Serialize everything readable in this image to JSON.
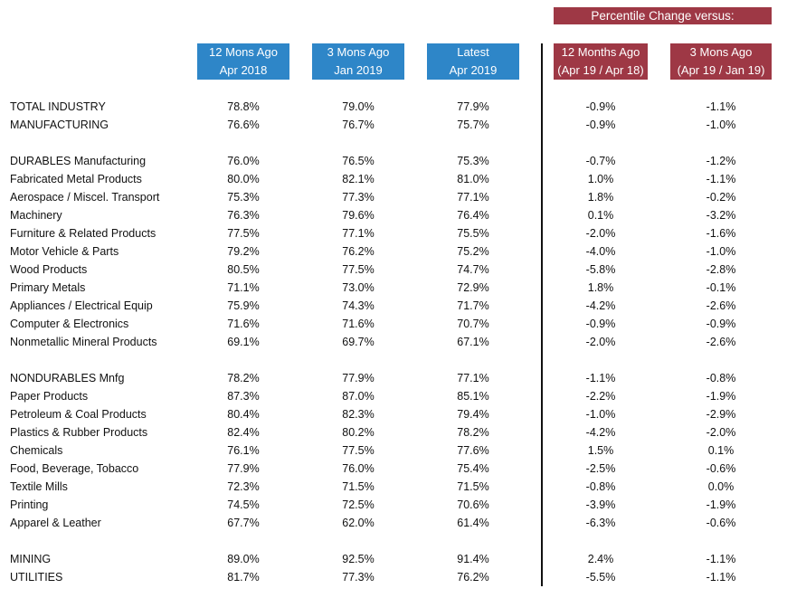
{
  "banner": "Percentile Change versus:",
  "headers": {
    "h12": [
      "12 Mons Ago",
      "Apr 2018"
    ],
    "h3": [
      "3 Mons Ago",
      "Jan 2019"
    ],
    "latest": [
      "Latest",
      "Apr 2019"
    ],
    "chg12": [
      "12 Months Ago",
      "(Apr 19 / Apr 18)"
    ],
    "chg3": [
      "3 Mons Ago",
      "(Apr 19 / Jan 19)"
    ]
  },
  "colors": {
    "blue_header": "#2e86c8",
    "red_header": "#9e3845"
  },
  "rows": [
    {
      "label": "TOTAL INDUSTRY",
      "m12": "78.8%",
      "m3": "79.0%",
      "latest": "77.9%",
      "chg12": "-0.9%",
      "chg3": "-1.1%"
    },
    {
      "label": "MANUFACTURING",
      "m12": "76.6%",
      "m3": "76.7%",
      "latest": "75.7%",
      "chg12": "-0.9%",
      "chg3": "-1.0%"
    },
    {
      "label": "DURABLES Manufacturing",
      "m12": "76.0%",
      "m3": "76.5%",
      "latest": "75.3%",
      "chg12": "-0.7%",
      "chg3": "-1.2%"
    },
    {
      "label": "Fabricated Metal Products",
      "m12": "80.0%",
      "m3": "82.1%",
      "latest": "81.0%",
      "chg12": "1.0%",
      "chg3": "-1.1%"
    },
    {
      "label": "Aerospace / Miscel. Transport",
      "m12": "75.3%",
      "m3": "77.3%",
      "latest": "77.1%",
      "chg12": "1.8%",
      "chg3": "-0.2%"
    },
    {
      "label": "Machinery",
      "m12": "76.3%",
      "m3": "79.6%",
      "latest": "76.4%",
      "chg12": "0.1%",
      "chg3": "-3.2%"
    },
    {
      "label": "Furniture & Related Products",
      "m12": "77.5%",
      "m3": "77.1%",
      "latest": "75.5%",
      "chg12": "-2.0%",
      "chg3": "-1.6%"
    },
    {
      "label": "Motor Vehicle & Parts",
      "m12": "79.2%",
      "m3": "76.2%",
      "latest": "75.2%",
      "chg12": "-4.0%",
      "chg3": "-1.0%"
    },
    {
      "label": "Wood Products",
      "m12": "80.5%",
      "m3": "77.5%",
      "latest": "74.7%",
      "chg12": "-5.8%",
      "chg3": "-2.8%"
    },
    {
      "label": "Primary Metals",
      "m12": "71.1%",
      "m3": "73.0%",
      "latest": "72.9%",
      "chg12": "1.8%",
      "chg3": "-0.1%"
    },
    {
      "label": "Appliances / Electrical Equip",
      "m12": "75.9%",
      "m3": "74.3%",
      "latest": "71.7%",
      "chg12": "-4.2%",
      "chg3": "-2.6%"
    },
    {
      "label": "Computer & Electronics",
      "m12": "71.6%",
      "m3": "71.6%",
      "latest": "70.7%",
      "chg12": "-0.9%",
      "chg3": "-0.9%"
    },
    {
      "label": "Nonmetallic Mineral Products",
      "m12": "69.1%",
      "m3": "69.7%",
      "latest": "67.1%",
      "chg12": "-2.0%",
      "chg3": "-2.6%"
    },
    {
      "label": "NONDURABLES Mnfg",
      "m12": "78.2%",
      "m3": "77.9%",
      "latest": "77.1%",
      "chg12": "-1.1%",
      "chg3": "-0.8%"
    },
    {
      "label": "Paper Products",
      "m12": "87.3%",
      "m3": "87.0%",
      "latest": "85.1%",
      "chg12": "-2.2%",
      "chg3": "-1.9%"
    },
    {
      "label": "Petroleum & Coal Products",
      "m12": "80.4%",
      "m3": "82.3%",
      "latest": "79.4%",
      "chg12": "-1.0%",
      "chg3": "-2.9%"
    },
    {
      "label": "Plastics & Rubber Products",
      "m12": "82.4%",
      "m3": "80.2%",
      "latest": "78.2%",
      "chg12": "-4.2%",
      "chg3": "-2.0%"
    },
    {
      "label": "Chemicals",
      "m12": "76.1%",
      "m3": "77.5%",
      "latest": "77.6%",
      "chg12": "1.5%",
      "chg3": "0.1%"
    },
    {
      "label": "Food, Beverage, Tobacco",
      "m12": "77.9%",
      "m3": "76.0%",
      "latest": "75.4%",
      "chg12": "-2.5%",
      "chg3": "-0.6%"
    },
    {
      "label": "Textile Mills",
      "m12": "72.3%",
      "m3": "71.5%",
      "latest": "71.5%",
      "chg12": "-0.8%",
      "chg3": "0.0%"
    },
    {
      "label": "Printing",
      "m12": "74.5%",
      "m3": "72.5%",
      "latest": "70.6%",
      "chg12": "-3.9%",
      "chg3": "-1.9%"
    },
    {
      "label": "Apparel & Leather",
      "m12": "67.7%",
      "m3": "62.0%",
      "latest": "61.4%",
      "chg12": "-6.3%",
      "chg3": "-0.6%"
    },
    {
      "label": "MINING",
      "m12": "89.0%",
      "m3": "92.5%",
      "latest": "91.4%",
      "chg12": "2.4%",
      "chg3": "-1.1%"
    },
    {
      "label": "UTILITIES",
      "m12": "81.7%",
      "m3": "77.3%",
      "latest": "76.2%",
      "chg12": "-5.5%",
      "chg3": "-1.1%"
    }
  ]
}
